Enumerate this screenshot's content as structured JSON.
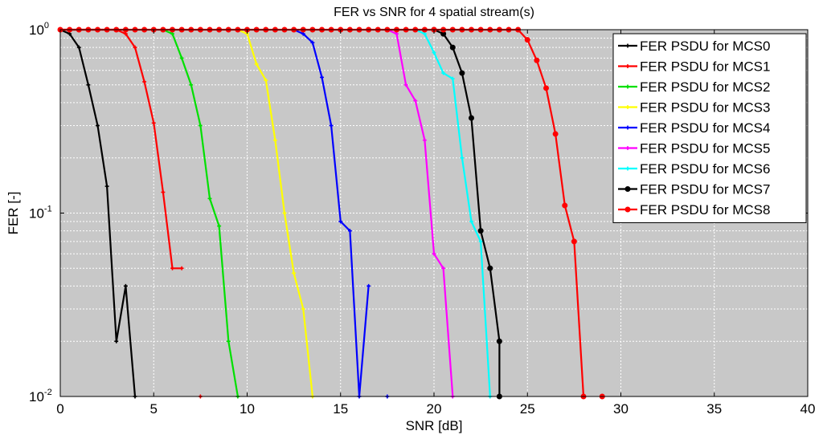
{
  "chart_data": {
    "type": "line",
    "title": "FER vs SNR for 4 spatial stream(s)",
    "xlabel": "SNR [dB]",
    "ylabel": "FER [-]",
    "xlim": [
      0,
      40
    ],
    "ylim": [
      0.01,
      1
    ],
    "yscale": "log",
    "grid": true,
    "legend_position": "top-right",
    "x_ticks": [
      {
        "value": 0,
        "label": "0"
      },
      {
        "value": 5,
        "label": "5"
      },
      {
        "value": 10,
        "label": "10"
      },
      {
        "value": 15,
        "label": "15"
      },
      {
        "value": 20,
        "label": "20"
      },
      {
        "value": 25,
        "label": "25"
      },
      {
        "value": 30,
        "label": "30"
      },
      {
        "value": 35,
        "label": "35"
      },
      {
        "value": 40,
        "label": "40"
      }
    ],
    "y_ticks": [
      {
        "value": 1,
        "base": "10",
        "exp": "0"
      },
      {
        "value": 0.1,
        "base": "10",
        "exp": "-1"
      },
      {
        "value": 0.01,
        "base": "10",
        "exp": "-2"
      }
    ],
    "series": [
      {
        "name": "FER PSDU for MCS0",
        "color": "#000000",
        "marker": "plus",
        "points": [
          [
            0,
            1
          ],
          [
            0.5,
            0.95
          ],
          [
            1,
            0.8
          ],
          [
            1.5,
            0.5
          ],
          [
            2,
            0.3
          ],
          [
            2.5,
            0.14
          ],
          [
            3,
            0.02
          ],
          [
            3.5,
            0.04
          ],
          [
            4,
            0.01
          ]
        ]
      },
      {
        "name": "FER PSDU for MCS1",
        "color": "#ff0000",
        "marker": "plus",
        "points": [
          [
            0,
            1
          ],
          [
            0.5,
            1
          ],
          [
            1,
            1
          ],
          [
            1.5,
            1
          ],
          [
            2,
            1
          ],
          [
            2.5,
            1
          ],
          [
            3,
            1
          ],
          [
            3.5,
            0.95
          ],
          [
            4,
            0.8
          ],
          [
            4.5,
            0.52
          ],
          [
            5,
            0.31
          ],
          [
            5.5,
            0.13
          ],
          [
            6,
            0.05
          ],
          [
            6.5,
            0.05
          ]
        ],
        "extra_points": [
          [
            7.5,
            0.01
          ]
        ]
      },
      {
        "name": "FER PSDU for MCS2",
        "color": "#00e000",
        "marker": "plus",
        "points": [
          [
            5.5,
            1
          ],
          [
            6,
            0.95
          ],
          [
            6.5,
            0.7
          ],
          [
            7,
            0.5
          ],
          [
            7.5,
            0.3
          ],
          [
            8,
            0.12
          ],
          [
            8.5,
            0.085
          ],
          [
            9,
            0.02
          ],
          [
            9.5,
            0.01
          ]
        ]
      },
      {
        "name": "FER PSDU for MCS3",
        "color": "#ffff00",
        "marker": "plus",
        "points": [
          [
            9.5,
            1
          ],
          [
            10,
            0.95
          ],
          [
            10.5,
            0.65
          ],
          [
            11,
            0.53
          ],
          [
            11.5,
            0.25
          ],
          [
            12,
            0.1
          ],
          [
            12.5,
            0.047
          ],
          [
            13,
            0.03
          ],
          [
            13.5,
            0.01
          ]
        ]
      },
      {
        "name": "FER PSDU for MCS4",
        "color": "#0000ff",
        "marker": "plus",
        "points": [
          [
            12.5,
            1
          ],
          [
            13,
            0.95
          ],
          [
            13.5,
            0.85
          ],
          [
            14,
            0.55
          ],
          [
            14.5,
            0.3
          ],
          [
            15,
            0.09
          ],
          [
            15.5,
            0.08
          ],
          [
            16,
            0.01
          ],
          [
            16.5,
            0.04
          ]
        ],
        "extra_points": [
          [
            17.5,
            0.01
          ]
        ]
      },
      {
        "name": "FER PSDU for MCS5",
        "color": "#ff00ff",
        "marker": "plus",
        "points": [
          [
            17.5,
            1
          ],
          [
            18,
            0.95
          ],
          [
            18.5,
            0.5
          ],
          [
            19,
            0.41
          ],
          [
            19.5,
            0.25
          ],
          [
            20,
            0.06
          ],
          [
            20.5,
            0.05
          ],
          [
            21,
            0.01
          ]
        ]
      },
      {
        "name": "FER PSDU for MCS6",
        "color": "#00ffff",
        "marker": "plus",
        "points": [
          [
            19,
            1
          ],
          [
            19.5,
            0.95
          ],
          [
            20,
            0.75
          ],
          [
            20.5,
            0.58
          ],
          [
            21,
            0.54
          ],
          [
            21.5,
            0.2
          ],
          [
            22,
            0.09
          ],
          [
            22.5,
            0.07
          ],
          [
            23,
            0.01
          ]
        ]
      },
      {
        "name": "FER PSDU for MCS7",
        "color": "#000000",
        "marker": "dot",
        "points": [
          [
            20,
            1
          ],
          [
            20.5,
            0.95
          ],
          [
            21,
            0.8
          ],
          [
            21.5,
            0.58
          ],
          [
            22,
            0.33
          ],
          [
            22.5,
            0.08
          ],
          [
            23,
            0.05
          ],
          [
            23.5,
            0.02
          ],
          [
            23.5,
            0.01
          ]
        ]
      },
      {
        "name": "FER PSDU for MCS8",
        "color": "#ff0000",
        "marker": "dot",
        "points": [
          [
            0,
            1
          ],
          [
            0.5,
            1
          ],
          [
            1,
            1
          ],
          [
            1.5,
            1
          ],
          [
            2,
            1
          ],
          [
            2.5,
            1
          ],
          [
            3,
            1
          ],
          [
            3.5,
            1
          ],
          [
            4,
            1
          ],
          [
            4.5,
            1
          ],
          [
            5,
            1
          ],
          [
            5.5,
            1
          ],
          [
            6,
            1
          ],
          [
            6.5,
            1
          ],
          [
            7,
            1
          ],
          [
            7.5,
            1
          ],
          [
            8,
            1
          ],
          [
            8.5,
            1
          ],
          [
            9,
            1
          ],
          [
            9.5,
            1
          ],
          [
            10,
            1
          ],
          [
            10.5,
            1
          ],
          [
            11,
            1
          ],
          [
            11.5,
            1
          ],
          [
            12,
            1
          ],
          [
            12.5,
            1
          ],
          [
            13,
            1
          ],
          [
            13.5,
            1
          ],
          [
            14,
            1
          ],
          [
            14.5,
            1
          ],
          [
            15,
            1
          ],
          [
            15.5,
            1
          ],
          [
            16,
            1
          ],
          [
            16.5,
            1
          ],
          [
            17,
            1
          ],
          [
            17.5,
            1
          ],
          [
            18,
            1
          ],
          [
            18.5,
            1
          ],
          [
            19,
            1
          ],
          [
            19.5,
            1
          ],
          [
            20,
            1
          ],
          [
            20.5,
            1
          ],
          [
            21,
            1
          ],
          [
            21.5,
            1
          ],
          [
            22,
            1
          ],
          [
            22.5,
            1
          ],
          [
            23,
            1
          ],
          [
            23.5,
            1
          ],
          [
            24,
            1
          ],
          [
            24.5,
            1
          ],
          [
            25,
            0.88
          ],
          [
            25.5,
            0.68
          ],
          [
            26,
            0.48
          ],
          [
            26.5,
            0.27
          ],
          [
            27,
            0.11
          ],
          [
            27.5,
            0.07
          ],
          [
            28,
            0.01
          ]
        ],
        "extra_points": [
          [
            29,
            0.01
          ]
        ]
      }
    ]
  }
}
